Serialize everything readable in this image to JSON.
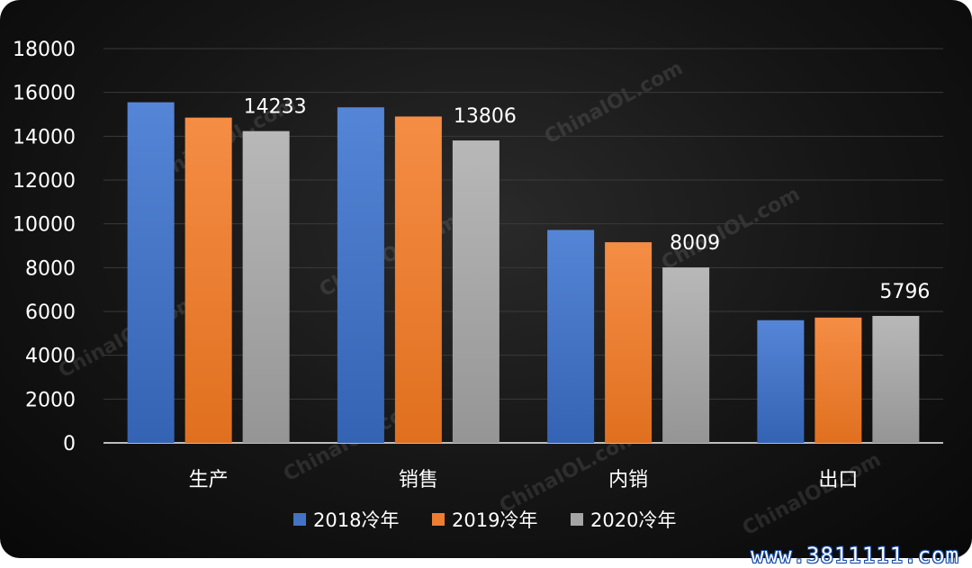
{
  "chart_data": {
    "type": "bar",
    "title": "",
    "xlabel": "",
    "ylabel": "",
    "ylim": [
      0,
      18000
    ],
    "yticks": [
      0,
      2000,
      4000,
      6000,
      8000,
      10000,
      12000,
      14000,
      16000,
      18000
    ],
    "grid": true,
    "legend_position": "bottom",
    "categories": [
      "生产",
      "销售",
      "内销",
      "出口"
    ],
    "series": [
      {
        "name": "2018冷年",
        "color": "#4472c4",
        "values": [
          15550,
          15320,
          9720,
          5600
        ]
      },
      {
        "name": "2019冷年",
        "color": "#ed7d31",
        "values": [
          14850,
          14900,
          9160,
          5720
        ]
      },
      {
        "name": "2020冷年",
        "color": "#a5a5a5",
        "values": [
          14233,
          13806,
          8009,
          5796
        ],
        "data_labels": [
          "14233",
          "13806",
          "8009",
          "5796"
        ]
      }
    ]
  },
  "watermark": "ChinaIOL.com",
  "footer_url": "www.3811111.com"
}
